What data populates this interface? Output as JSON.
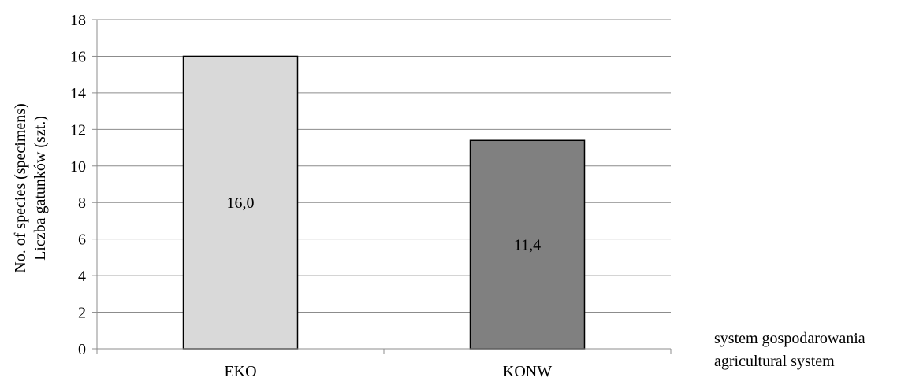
{
  "chart_data": {
    "type": "bar",
    "categories": [
      "EKO",
      "KONW"
    ],
    "values": [
      16.0,
      11.4
    ],
    "data_labels": [
      "16,0",
      "11,4"
    ],
    "bar_colors": [
      "#d9d9d9",
      "#808080"
    ],
    "bar_stroke": "#000000",
    "grid_color": "#8c8c8c",
    "axis_color": "#8c8c8c",
    "ylim": [
      0,
      18
    ],
    "yticks": [
      0,
      2,
      4,
      6,
      8,
      10,
      12,
      14,
      16,
      18
    ],
    "ylabel_lines": [
      "No. of species (specimens)",
      "Liczba gatunków (szt.)"
    ],
    "xlabel_lines": [
      "system gospodarowania",
      "agricultural system"
    ],
    "grid": true
  }
}
